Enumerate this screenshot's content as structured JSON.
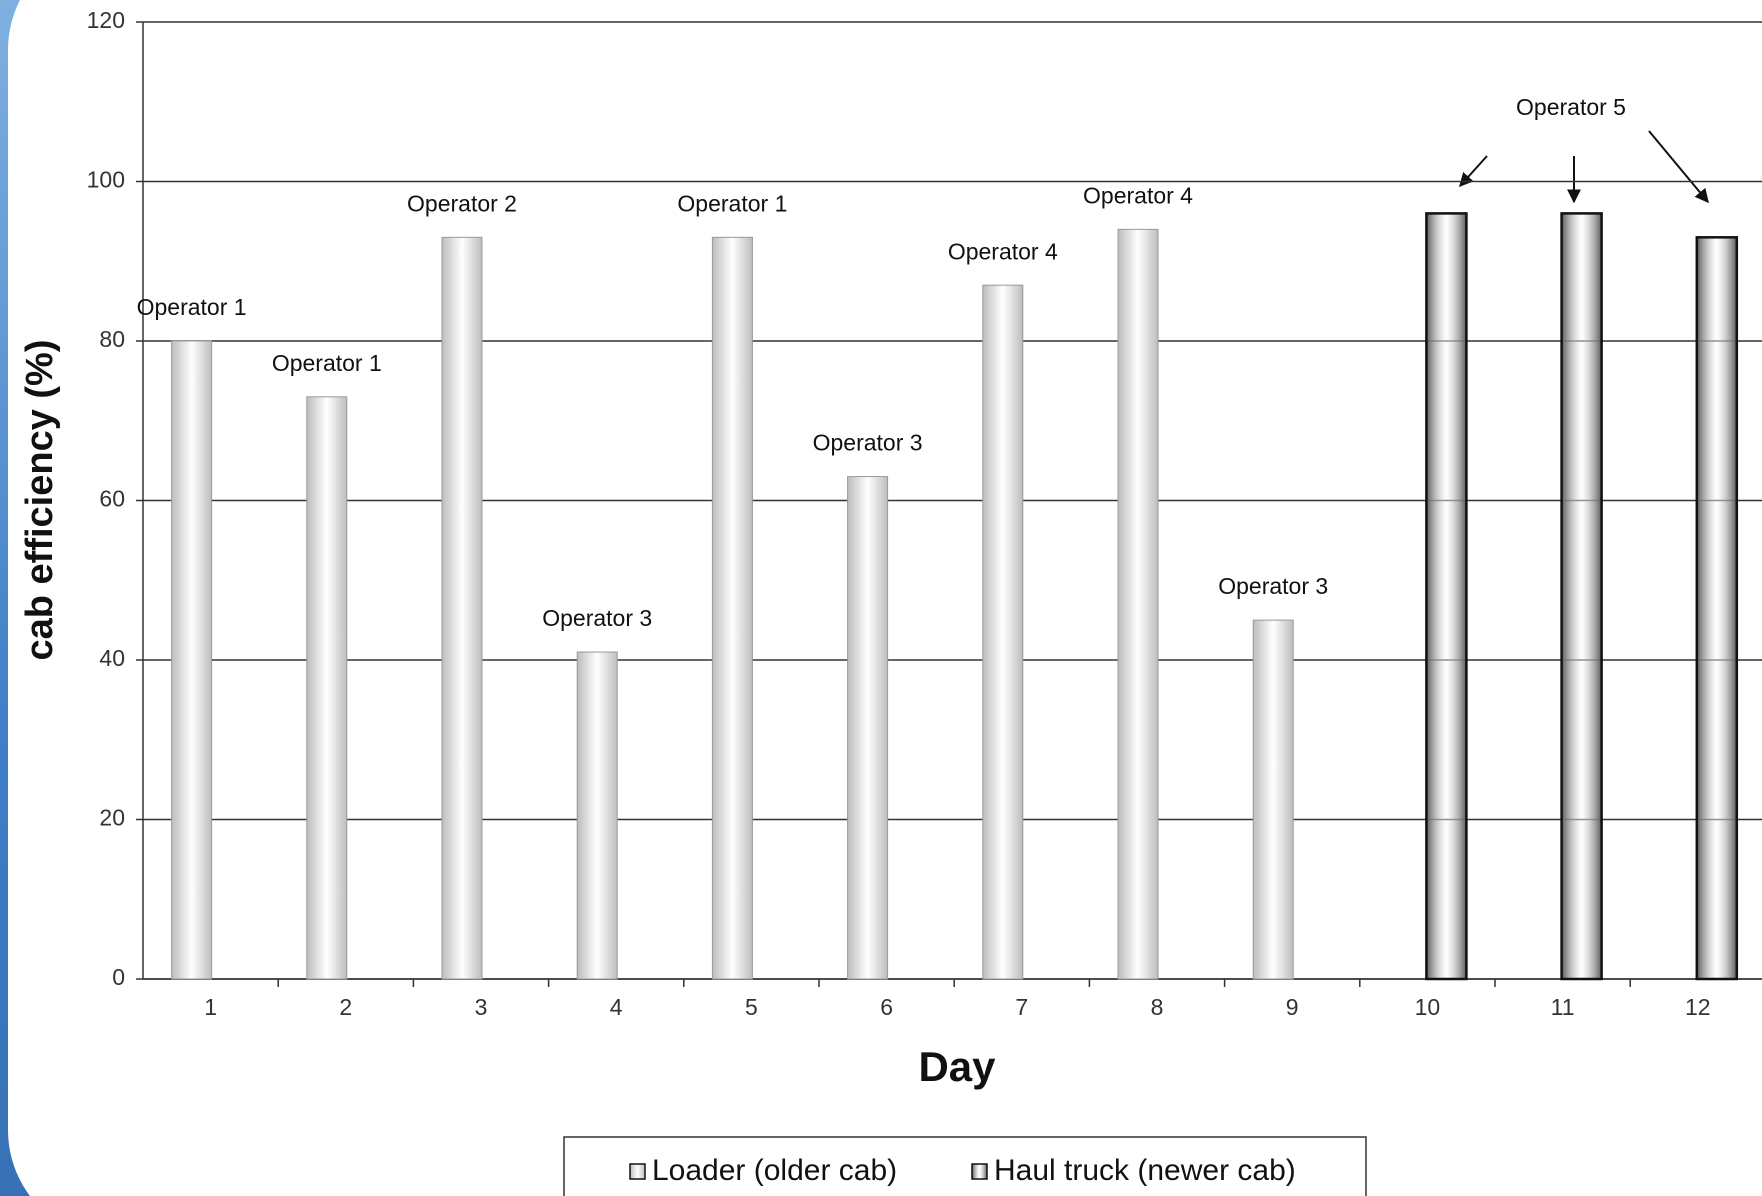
{
  "chart_data": {
    "type": "bar",
    "x_label": "Day",
    "y_label": "cab efficiency (%)",
    "categories": [
      "1",
      "2",
      "3",
      "4",
      "5",
      "6",
      "7",
      "8",
      "9",
      "10",
      "11",
      "12"
    ],
    "series": [
      {
        "name": "Loader (older cab)",
        "color": "#bdbdbd",
        "values": [
          80,
          73,
          93,
          41,
          93,
          63,
          87,
          94,
          45,
          null,
          null,
          null
        ]
      },
      {
        "name": "Haul truck (newer cab)",
        "color": "#5a5a5a",
        "values": [
          null,
          null,
          null,
          null,
          null,
          null,
          null,
          null,
          null,
          96,
          96,
          93
        ]
      }
    ],
    "operator_labels": [
      "Operator 1",
      "Operator 1",
      "Operator 2",
      "Operator 3",
      "Operator 1",
      "Operator 3",
      "Operator 4",
      "Operator 4",
      "Operator 3",
      null,
      null,
      null
    ],
    "annotation": "Operator 5",
    "ylim": [
      0,
      120
    ],
    "yticks": [
      0,
      20,
      40,
      60,
      80,
      100,
      120
    ],
    "grid": true,
    "legend": "bottom"
  }
}
